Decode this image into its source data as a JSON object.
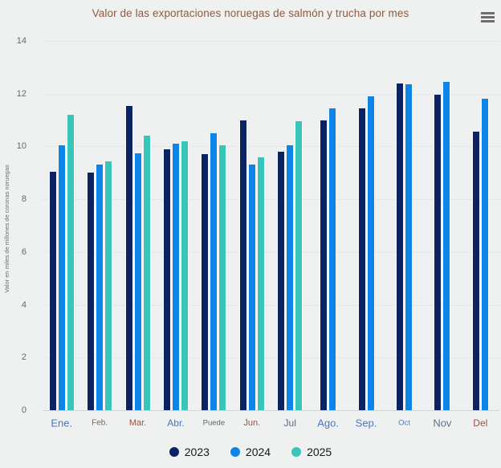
{
  "chart_data": {
    "type": "bar",
    "title": "Valor de las exportaciones noruegas de salmón y trucha por mes",
    "xlabel": "",
    "ylabel": "Valor en miles de millones de coronas noruegas",
    "ylim": [
      0,
      14
    ],
    "yticks": [
      0,
      2,
      4,
      6,
      8,
      10,
      12,
      14
    ],
    "grid": true,
    "legend_position": "bottom",
    "categories": [
      "Ene.",
      "Feb.",
      "Mar.",
      "Abr.",
      "Puede",
      "Jun.",
      "Jul",
      "Ago.",
      "Sep.",
      "Oct",
      "Nov",
      "Del"
    ],
    "category_label_styles": [
      {
        "color": "#4a77c4",
        "size": 13
      },
      {
        "color": "#756a60",
        "size": 10
      },
      {
        "color": "#9d4f43",
        "size": 11
      },
      {
        "color": "#4a77c4",
        "size": 12
      },
      {
        "color": "#636363",
        "size": 9.5
      },
      {
        "color": "#9d4f43",
        "size": 11
      },
      {
        "color": "#5c6b83",
        "size": 12
      },
      {
        "color": "#4a77c4",
        "size": 13
      },
      {
        "color": "#4a77c4",
        "size": 13
      },
      {
        "color": "#4a77c4",
        "size": 9.5
      },
      {
        "color": "#5f7390",
        "size": 13
      },
      {
        "color": "#9d4f43",
        "size": 12
      }
    ],
    "series": [
      {
        "name": "2023",
        "color": "#0b2264",
        "values": [
          9.05,
          9.0,
          11.55,
          9.9,
          9.7,
          11.0,
          9.8,
          11.0,
          11.45,
          12.4,
          11.95,
          10.55
        ]
      },
      {
        "name": "2024",
        "color": "#0d85e8",
        "values": [
          10.05,
          9.3,
          9.75,
          10.1,
          10.5,
          9.3,
          10.05,
          11.45,
          11.9,
          12.35,
          12.45,
          11.8
        ]
      },
      {
        "name": "2025",
        "color": "#39c6ba",
        "values": [
          11.2,
          9.45,
          10.4,
          10.2,
          10.05,
          9.6,
          10.95,
          null,
          null,
          null,
          null,
          null
        ]
      }
    ]
  },
  "context_menu": {
    "icon": "hamburger-icon"
  }
}
